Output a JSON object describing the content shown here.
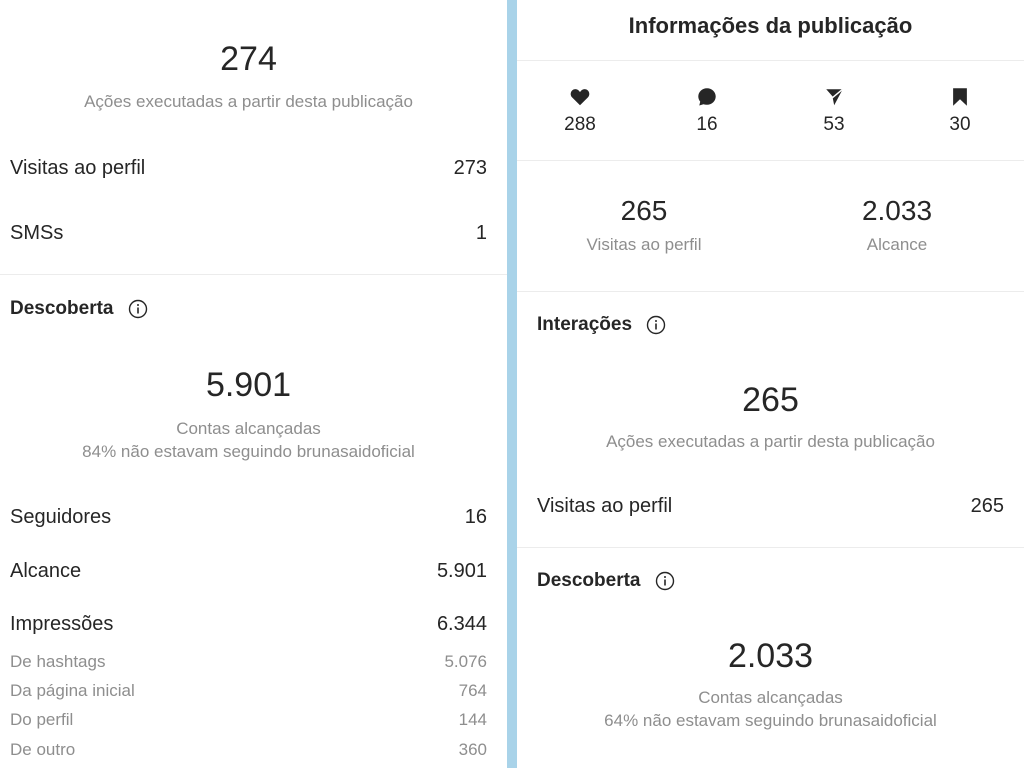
{
  "left": {
    "actions_total": "274",
    "actions_caption": "Ações executadas a partir desta publicação",
    "rows": [
      {
        "label": "Visitas ao perfil",
        "value": "273"
      },
      {
        "label": "SMSs",
        "value": "1"
      }
    ],
    "discovery": {
      "title": "Descoberta",
      "accounts_reached": "5.901",
      "accounts_caption": "Contas alcançadas",
      "not_following_caption": "84% não estavam seguindo brunasaidoficial",
      "rows": [
        {
          "label": "Seguidores",
          "value": "16"
        },
        {
          "label": "Alcance",
          "value": "5.901"
        },
        {
          "label": "Impressões",
          "value": "6.344"
        }
      ],
      "impression_sources": [
        {
          "label": "De hashtags",
          "value": "5.076"
        },
        {
          "label": "Da página inicial",
          "value": "764"
        },
        {
          "label": "Do perfil",
          "value": "144"
        },
        {
          "label": "De outro",
          "value": "360"
        }
      ]
    }
  },
  "right": {
    "header_title": "Informações da publicação",
    "stats": [
      {
        "icon": "heart-icon",
        "value": "288"
      },
      {
        "icon": "comment-icon",
        "value": "16"
      },
      {
        "icon": "send-icon",
        "value": "53"
      },
      {
        "icon": "bookmark-icon",
        "value": "30"
      }
    ],
    "metrics": [
      {
        "value": "265",
        "label": "Visitas ao perfil"
      },
      {
        "value": "2.033",
        "label": "Alcance"
      }
    ],
    "interactions": {
      "title": "Interações",
      "actions_total": "265",
      "actions_caption": "Ações executadas a partir desta publicação",
      "rows": [
        {
          "label": "Visitas ao perfil",
          "value": "265"
        }
      ]
    },
    "discovery": {
      "title": "Descoberta",
      "accounts_reached": "2.033",
      "accounts_caption": "Contas alcançadas",
      "not_following_caption": "64% não estavam seguindo brunasaidoficial"
    }
  },
  "colors": {
    "divider": "#a9d3e9",
    "text_primary": "#262626",
    "text_secondary": "#8e8e8e"
  }
}
